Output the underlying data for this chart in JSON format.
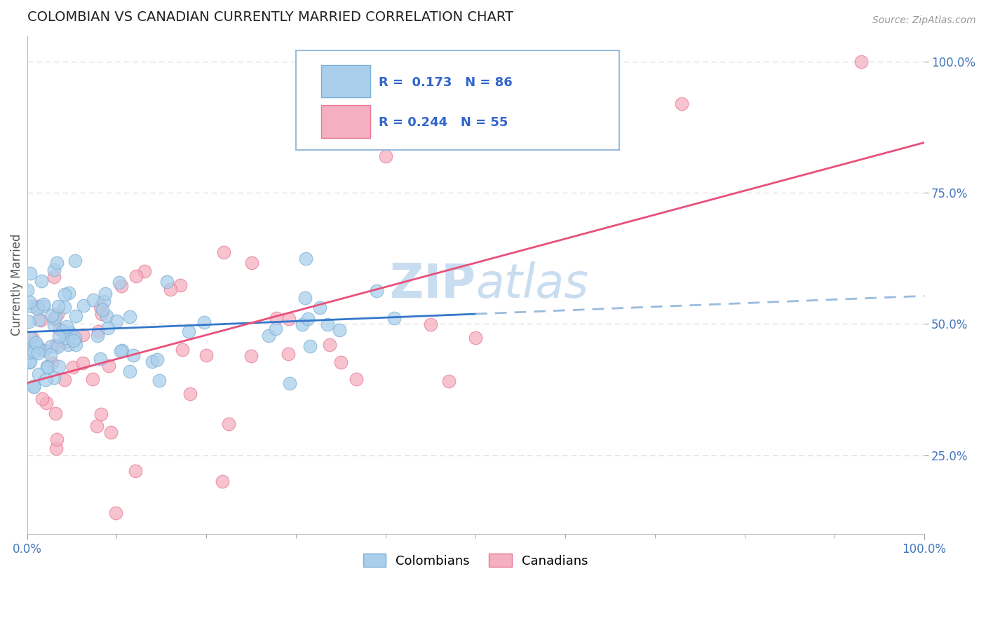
{
  "title": "COLOMBIAN VS CANADIAN CURRENTLY MARRIED CORRELATION CHART",
  "source_text": "Source: ZipAtlas.com",
  "ylabel": "Currently Married",
  "xlim": [
    0.0,
    1.0
  ],
  "ylim": [
    0.1,
    1.05
  ],
  "ytick_values": [
    0.25,
    0.5,
    0.75,
    1.0
  ],
  "colombian_color": "#aacfec",
  "canadian_color": "#f4afc0",
  "colombian_edge": "#7aafd4",
  "canadian_edge": "#e87898",
  "trend_colombian_color": "#3377cc",
  "trend_canadian_color": "#e8507a",
  "trend_colombian_dash_color": "#99bbdd",
  "watermark_zip_color": "#c8ddf0",
  "watermark_atlas_color": "#c8ddf0",
  "background_color": "#ffffff",
  "grid_color": "#dddddd",
  "legend_box_color": "#99bbdd",
  "legend_text_color": "#3366cc",
  "R_colombian": 0.173,
  "N_colombian": 86,
  "R_canadian": 0.244,
  "N_canadian": 55,
  "col_seed": 42,
  "can_seed": 99
}
